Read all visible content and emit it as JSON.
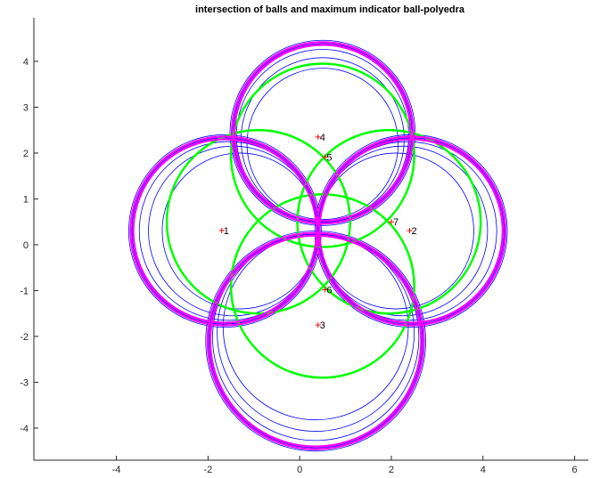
{
  "chart_data": {
    "type": "scatter",
    "title": "intersection of balls and maximum indicator ball-polyedra",
    "xlabel": "",
    "ylabel": "",
    "xlim": [
      -5.8,
      6.3
    ],
    "ylim": [
      -4.7,
      4.95
    ],
    "xticks": [
      -4,
      -2,
      0,
      2,
      4,
      6
    ],
    "yticks": [
      -4,
      -3,
      -2,
      -1,
      0,
      1,
      2,
      3,
      4
    ],
    "grid": false,
    "colors": {
      "blue_circles": "#0000ff",
      "magenta_circles": "#ff00ff",
      "green_circles": "#00ff00",
      "point_markers": "#ff0000",
      "axes": "#262626"
    },
    "blue_circles": [
      {
        "cx": 0.5,
        "cy": 2.44,
        "r": 2.02
      },
      {
        "cx": 0.5,
        "cy": 2.44,
        "r": 1.95
      },
      {
        "cx": 0.5,
        "cy": 2.38,
        "r": 1.88
      },
      {
        "cx": 0.5,
        "cy": 2.3,
        "r": 1.78
      },
      {
        "cx": 0.5,
        "cy": 2.2,
        "r": 1.65
      },
      {
        "cx": -1.63,
        "cy": 0.3,
        "r": 2.1
      },
      {
        "cx": -1.63,
        "cy": 0.3,
        "r": 2.03
      },
      {
        "cx": -1.55,
        "cy": 0.3,
        "r": 1.95
      },
      {
        "cx": -1.45,
        "cy": 0.3,
        "r": 1.85
      },
      {
        "cx": -1.3,
        "cy": 0.3,
        "r": 1.7
      },
      {
        "cx": 2.43,
        "cy": 0.3,
        "r": 2.1
      },
      {
        "cx": 2.43,
        "cy": 0.3,
        "r": 2.03
      },
      {
        "cx": 2.35,
        "cy": 0.3,
        "r": 1.95
      },
      {
        "cx": 2.25,
        "cy": 0.3,
        "r": 1.85
      },
      {
        "cx": 2.1,
        "cy": 0.3,
        "r": 1.7
      },
      {
        "cx": 0.35,
        "cy": -2.1,
        "r": 2.4
      },
      {
        "cx": 0.35,
        "cy": -2.1,
        "r": 2.33
      },
      {
        "cx": 0.35,
        "cy": -2.02,
        "r": 2.25
      },
      {
        "cx": 0.35,
        "cy": -1.92,
        "r": 2.15
      },
      {
        "cx": 0.35,
        "cy": -1.8,
        "r": 2.02
      }
    ],
    "magenta_circles": [
      {
        "cx": 0.5,
        "cy": 2.44,
        "r": 1.98
      },
      {
        "cx": 0.5,
        "cy": 2.44,
        "r": 1.92
      },
      {
        "cx": -1.63,
        "cy": 0.3,
        "r": 2.06
      },
      {
        "cx": -1.63,
        "cy": 0.3,
        "r": 2.0
      },
      {
        "cx": 2.43,
        "cy": 0.3,
        "r": 2.06
      },
      {
        "cx": 2.43,
        "cy": 0.3,
        "r": 2.0
      },
      {
        "cx": 0.35,
        "cy": -2.1,
        "r": 2.36
      },
      {
        "cx": 0.35,
        "cy": -2.1,
        "r": 2.3
      }
    ],
    "green_circles": [
      {
        "cx": 0.5,
        "cy": 1.95,
        "r": 2.0
      },
      {
        "cx": -0.9,
        "cy": 0.5,
        "r": 2.0
      },
      {
        "cx": 1.95,
        "cy": 0.5,
        "r": 2.0
      },
      {
        "cx": 0.5,
        "cy": -0.9,
        "r": 2.0
      }
    ],
    "points": [
      {
        "label": "1",
        "x": -1.7,
        "y": 0.31
      },
      {
        "label": "2",
        "x": 2.4,
        "y": 0.31
      },
      {
        "label": "3",
        "x": 0.4,
        "y": -1.75
      },
      {
        "label": "4",
        "x": 0.4,
        "y": 2.35
      },
      {
        "label": "5",
        "x": 0.55,
        "y": 1.91
      },
      {
        "label": "6",
        "x": 0.55,
        "y": -0.98
      },
      {
        "label": "7",
        "x": 2.0,
        "y": 0.5
      }
    ]
  }
}
